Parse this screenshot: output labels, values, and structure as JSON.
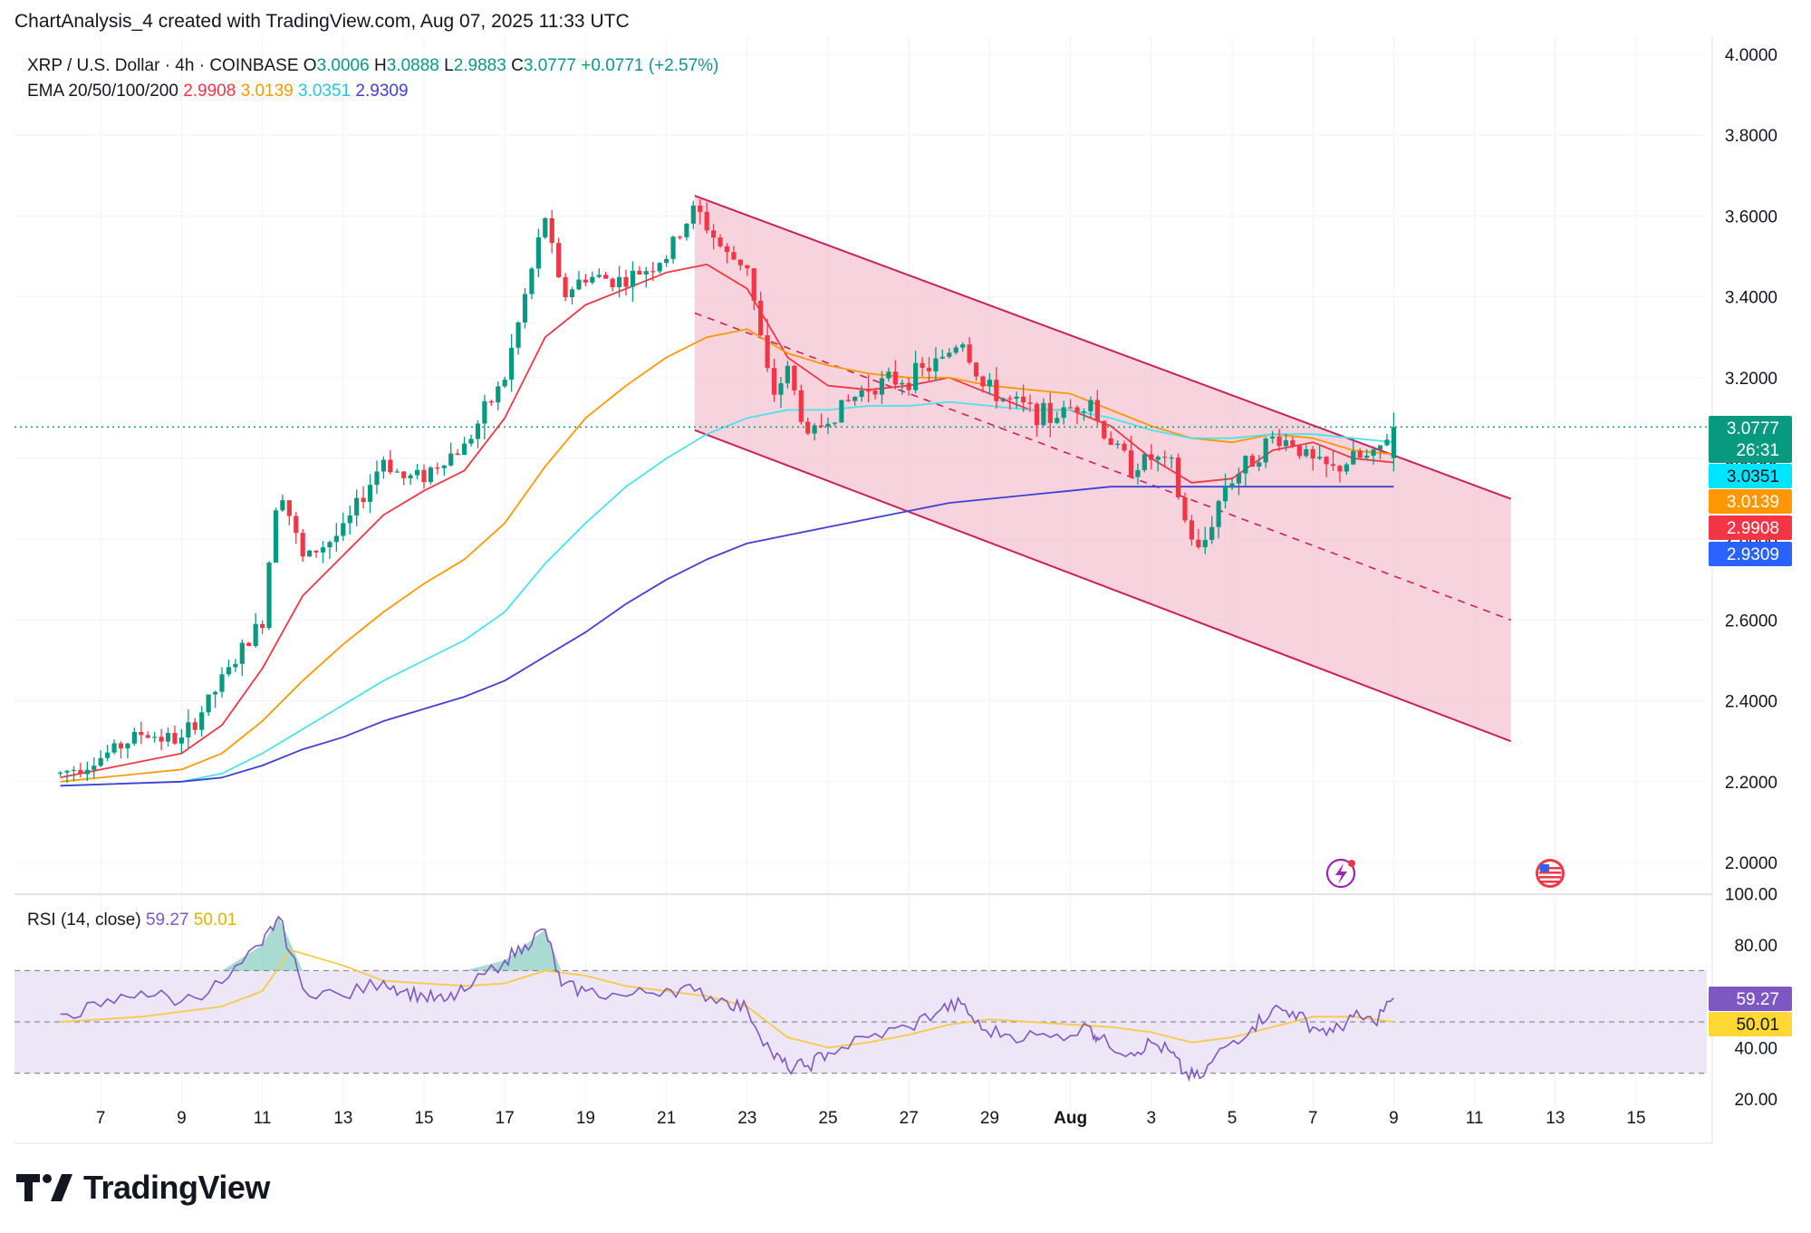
{
  "header": {
    "text": "ChartAnalysis_4 created with TradingView.com, Aug 07, 2025 11:33 UTC"
  },
  "legend": {
    "symbol": "XRP / U.S. Dollar · 4h · COINBASE",
    "o_label": "O",
    "o_value": "3.0006",
    "h_label": "H",
    "h_value": "3.0888",
    "l_label": "L",
    "l_value": "2.9883",
    "c_label": "C",
    "c_value": "3.0777",
    "change": "+0.0771 (+2.57%)",
    "ema_label": "EMA 20/50/100/200",
    "ema_values": [
      "2.9908",
      "3.0139",
      "3.0351",
      "2.9309"
    ]
  },
  "rsi_legend": {
    "label": "RSI (14, close)",
    "rsi": "59.27",
    "ma": "50.01"
  },
  "footer": {
    "brand": "TradingView"
  },
  "colors": {
    "up": "#089981",
    "down": "#f23645",
    "ema20": "#f23645",
    "ema50": "#ff9800",
    "ema100": "#4ae3e8",
    "ema200": "#3f3fd6",
    "channel_fill": "#f3bccd",
    "channel_line": "#cc1f5a",
    "rsi_line": "#7e57c2",
    "rsi_ma": "#f7c948",
    "rsi_band": "#ece6f6"
  },
  "chart_data": [
    {
      "type": "candlestick",
      "title": "XRP / U.S. Dollar · 4h · COINBASE",
      "price_axis": {
        "ticks": [
          "4.0000",
          "3.8000",
          "3.6000",
          "3.4000",
          "3.2000",
          "3.0000",
          "2.8000",
          "2.6000",
          "2.4000",
          "2.2000",
          "2.0000"
        ],
        "range": [
          1.94,
          4.04
        ]
      },
      "date_axis": {
        "labels": [
          "7",
          "9",
          "11",
          "13",
          "15",
          "17",
          "19",
          "21",
          "23",
          "25",
          "27",
          "29",
          "Aug",
          "3",
          "5",
          "7",
          "9",
          "11",
          "13",
          "15"
        ]
      },
      "price_tags": [
        {
          "value": "3.0777",
          "sub": "26:31",
          "color": "#089981",
          "price": 3.0777
        },
        {
          "value": "3.0351",
          "color": "#00e5ff",
          "text_color": "#131722",
          "price": 3.0351
        },
        {
          "value": "3.0139",
          "color": "#ff9800",
          "price": 3.0139
        },
        {
          "value": "2.9908",
          "color": "#f23645",
          "price": 2.9908
        },
        {
          "value": "2.9309",
          "color": "#2962ff",
          "price": 2.9309
        }
      ],
      "last_price": 3.0777,
      "anchors": [
        [
          6,
          2.22
        ],
        [
          7,
          2.26
        ],
        [
          8,
          2.32
        ],
        [
          9,
          2.3
        ],
        [
          10,
          2.45
        ],
        [
          11,
          2.6
        ],
        [
          11.4,
          2.95
        ],
        [
          12,
          2.75
        ],
        [
          13,
          2.82
        ],
        [
          14,
          3.0
        ],
        [
          14.5,
          2.95
        ],
        [
          15,
          2.96
        ],
        [
          15.5,
          3.0
        ],
        [
          16,
          3.03
        ],
        [
          17,
          3.2
        ],
        [
          17.5,
          3.4
        ],
        [
          18,
          3.6
        ],
        [
          18.4,
          3.4
        ],
        [
          19,
          3.45
        ],
        [
          20,
          3.44
        ],
        [
          21,
          3.5
        ],
        [
          21.7,
          3.62
        ],
        [
          22.5,
          3.5
        ],
        [
          23,
          3.48
        ],
        [
          23.6,
          3.15
        ],
        [
          24,
          3.22
        ],
        [
          24.5,
          3.05
        ],
        [
          25,
          3.1
        ],
        [
          26,
          3.18
        ],
        [
          27,
          3.2
        ],
        [
          27.8,
          3.24
        ],
        [
          28.3,
          3.3
        ],
        [
          28.8,
          3.18
        ],
        [
          29.5,
          3.14
        ],
        [
          30.5,
          3.1
        ],
        [
          31.5,
          3.15
        ],
        [
          31.7,
          3.08
        ],
        [
          32.5,
          2.98
        ],
        [
          33,
          3.0
        ],
        [
          33.5,
          2.98
        ],
        [
          33.8,
          2.85
        ],
        [
          34.2,
          2.76
        ],
        [
          34.8,
          2.93
        ],
        [
          35.5,
          3.0
        ],
        [
          36,
          3.05
        ],
        [
          36.5,
          3.04
        ],
        [
          37,
          2.99
        ],
        [
          37.5,
          2.97
        ],
        [
          38,
          3.0
        ],
        [
          38.5,
          3.0
        ],
        [
          39,
          3.08
        ]
      ],
      "ema": {
        "ema20": [
          [
            6,
            2.21
          ],
          [
            9,
            2.27
          ],
          [
            10,
            2.34
          ],
          [
            11,
            2.48
          ],
          [
            12,
            2.66
          ],
          [
            13,
            2.76
          ],
          [
            14,
            2.86
          ],
          [
            15,
            2.92
          ],
          [
            16,
            2.97
          ],
          [
            17,
            3.1
          ],
          [
            18,
            3.3
          ],
          [
            19,
            3.38
          ],
          [
            20,
            3.42
          ],
          [
            21,
            3.46
          ],
          [
            22,
            3.48
          ],
          [
            23,
            3.42
          ],
          [
            24,
            3.25
          ],
          [
            25,
            3.18
          ],
          [
            26,
            3.17
          ],
          [
            27,
            3.18
          ],
          [
            28,
            3.2
          ],
          [
            29,
            3.16
          ],
          [
            30,
            3.12
          ],
          [
            31,
            3.12
          ],
          [
            32,
            3.08
          ],
          [
            33,
            3.0
          ],
          [
            34,
            2.94
          ],
          [
            35,
            2.95
          ],
          [
            36,
            3.02
          ],
          [
            37,
            3.04
          ],
          [
            38,
            3.0
          ],
          [
            39,
            2.99
          ]
        ],
        "ema50": [
          [
            6,
            2.2
          ],
          [
            9,
            2.23
          ],
          [
            10,
            2.27
          ],
          [
            11,
            2.35
          ],
          [
            12,
            2.45
          ],
          [
            13,
            2.54
          ],
          [
            14,
            2.62
          ],
          [
            15,
            2.69
          ],
          [
            16,
            2.75
          ],
          [
            17,
            2.84
          ],
          [
            18,
            2.98
          ],
          [
            19,
            3.1
          ],
          [
            20,
            3.18
          ],
          [
            21,
            3.25
          ],
          [
            22,
            3.3
          ],
          [
            23,
            3.32
          ],
          [
            24,
            3.26
          ],
          [
            25,
            3.23
          ],
          [
            26,
            3.21
          ],
          [
            27,
            3.2
          ],
          [
            28,
            3.2
          ],
          [
            29,
            3.18
          ],
          [
            30,
            3.17
          ],
          [
            31,
            3.16
          ],
          [
            32,
            3.12
          ],
          [
            33,
            3.08
          ],
          [
            34,
            3.05
          ],
          [
            35,
            3.04
          ],
          [
            36,
            3.06
          ],
          [
            37,
            3.05
          ],
          [
            38,
            3.02
          ],
          [
            39,
            3.01
          ]
        ],
        "ema100": [
          [
            6,
            2.19
          ],
          [
            9,
            2.2
          ],
          [
            10,
            2.22
          ],
          [
            11,
            2.27
          ],
          [
            12,
            2.33
          ],
          [
            13,
            2.39
          ],
          [
            14,
            2.45
          ],
          [
            15,
            2.5
          ],
          [
            16,
            2.55
          ],
          [
            17,
            2.62
          ],
          [
            18,
            2.74
          ],
          [
            19,
            2.84
          ],
          [
            20,
            2.93
          ],
          [
            21,
            3.0
          ],
          [
            22,
            3.06
          ],
          [
            23,
            3.1
          ],
          [
            24,
            3.12
          ],
          [
            25,
            3.12
          ],
          [
            26,
            3.13
          ],
          [
            27,
            3.13
          ],
          [
            28,
            3.14
          ],
          [
            29,
            3.13
          ],
          [
            30,
            3.12
          ],
          [
            31,
            3.12
          ],
          [
            32,
            3.1
          ],
          [
            33,
            3.07
          ],
          [
            34,
            3.05
          ],
          [
            35,
            3.05
          ],
          [
            36,
            3.06
          ],
          [
            37,
            3.06
          ],
          [
            38,
            3.05
          ],
          [
            39,
            3.04
          ]
        ],
        "ema200": [
          [
            6,
            2.19
          ],
          [
            9,
            2.2
          ],
          [
            10,
            2.21
          ],
          [
            11,
            2.24
          ],
          [
            12,
            2.28
          ],
          [
            13,
            2.31
          ],
          [
            14,
            2.35
          ],
          [
            15,
            2.38
          ],
          [
            16,
            2.41
          ],
          [
            17,
            2.45
          ],
          [
            18,
            2.51
          ],
          [
            19,
            2.57
          ],
          [
            20,
            2.64
          ],
          [
            21,
            2.7
          ],
          [
            22,
            2.75
          ],
          [
            23,
            2.79
          ],
          [
            24,
            2.81
          ],
          [
            25,
            2.83
          ],
          [
            26,
            2.85
          ],
          [
            27,
            2.87
          ],
          [
            28,
            2.89
          ],
          [
            29,
            2.9
          ],
          [
            30,
            2.91
          ],
          [
            31,
            2.92
          ],
          [
            32,
            2.93
          ],
          [
            33,
            2.93
          ],
          [
            34,
            2.93
          ],
          [
            35,
            2.93
          ],
          [
            36,
            2.93
          ],
          [
            37,
            2.93
          ],
          [
            38,
            2.93
          ],
          [
            39,
            2.93
          ]
        ]
      },
      "channel": {
        "upper": [
          [
            21.7,
            3.65
          ],
          [
            41.9,
            2.9
          ]
        ],
        "lower": [
          [
            21.7,
            3.07
          ],
          [
            41.9,
            2.3
          ]
        ],
        "middle": [
          [
            21.7,
            3.36
          ],
          [
            41.9,
            2.6
          ]
        ]
      }
    },
    {
      "type": "line",
      "title": "RSI (14, close)",
      "axis": {
        "ticks": [
          "100.00",
          "80.00",
          "60.00",
          "40.00",
          "20.00"
        ],
        "range": [
          19,
          101
        ]
      },
      "bands": {
        "upper": 70,
        "middle": 50,
        "lower": 30
      },
      "rsi": [
        [
          6,
          53
        ],
        [
          7,
          56
        ],
        [
          8,
          62
        ],
        [
          9,
          58
        ],
        [
          10,
          65
        ],
        [
          11,
          80
        ],
        [
          11.4,
          91
        ],
        [
          12,
          63
        ],
        [
          13,
          60
        ],
        [
          14,
          66
        ],
        [
          14.5,
          62
        ],
        [
          15,
          60
        ],
        [
          15.5,
          58
        ],
        [
          16,
          62
        ],
        [
          17,
          74
        ],
        [
          17.5,
          80
        ],
        [
          18,
          86
        ],
        [
          18.4,
          64
        ],
        [
          19,
          62
        ],
        [
          20,
          60
        ],
        [
          21,
          63
        ],
        [
          21.7,
          62
        ],
        [
          22.5,
          58
        ],
        [
          23,
          55
        ],
        [
          23.6,
          38
        ],
        [
          24,
          32
        ],
        [
          24.5,
          33
        ],
        [
          25,
          38
        ],
        [
          26,
          44
        ],
        [
          27,
          48
        ],
        [
          27.8,
          55
        ],
        [
          28.3,
          57
        ],
        [
          28.8,
          47
        ],
        [
          29.5,
          45
        ],
        [
          30.5,
          44
        ],
        [
          31.5,
          48
        ],
        [
          31.7,
          43
        ],
        [
          32.5,
          38
        ],
        [
          33,
          42
        ],
        [
          33.5,
          38
        ],
        [
          33.8,
          30
        ],
        [
          34.2,
          28
        ],
        [
          34.8,
          40
        ],
        [
          35.5,
          48
        ],
        [
          36,
          55
        ],
        [
          36.5,
          54
        ],
        [
          37,
          48
        ],
        [
          37.5,
          46
        ],
        [
          38,
          52
        ],
        [
          38.5,
          50
        ],
        [
          39,
          59.27
        ]
      ],
      "rsi_ma": [
        [
          6,
          50
        ],
        [
          8,
          52
        ],
        [
          10,
          56
        ],
        [
          11,
          62
        ],
        [
          11.7,
          78
        ],
        [
          13,
          72
        ],
        [
          14,
          66
        ],
        [
          15,
          65
        ],
        [
          16,
          64
        ],
        [
          17,
          65
        ],
        [
          18,
          70
        ],
        [
          19,
          68
        ],
        [
          20,
          64
        ],
        [
          21,
          62
        ],
        [
          22,
          60
        ],
        [
          23,
          56
        ],
        [
          24,
          44
        ],
        [
          25,
          40
        ],
        [
          26,
          42
        ],
        [
          27,
          45
        ],
        [
          28,
          49
        ],
        [
          29,
          51
        ],
        [
          30,
          50
        ],
        [
          31,
          49
        ],
        [
          32,
          48
        ],
        [
          33,
          46
        ],
        [
          34,
          42
        ],
        [
          35,
          44
        ],
        [
          36,
          48
        ],
        [
          37,
          52
        ],
        [
          38,
          52
        ],
        [
          39,
          50.01
        ]
      ]
    }
  ]
}
